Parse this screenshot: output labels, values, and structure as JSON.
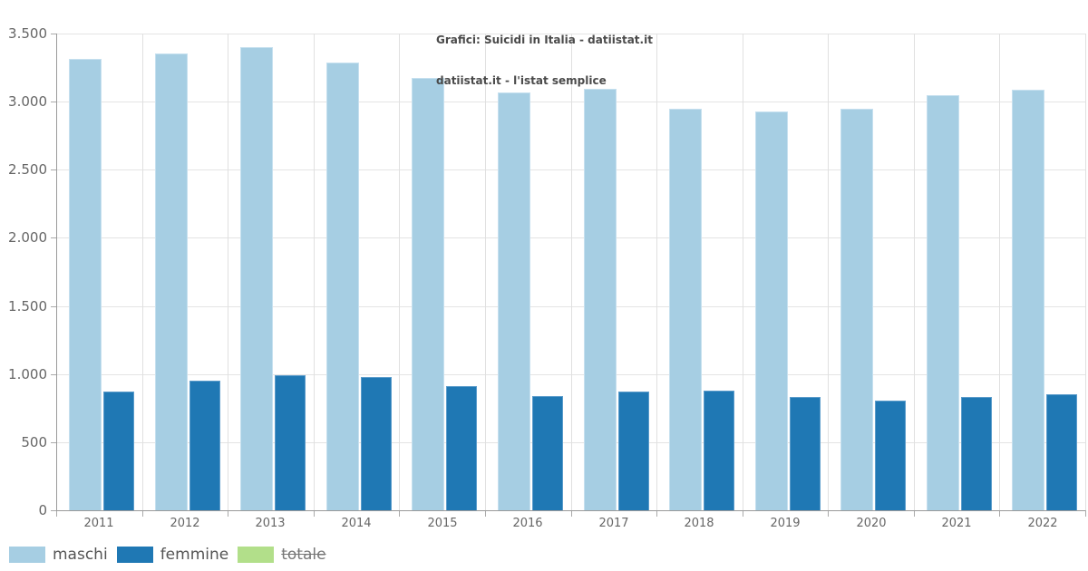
{
  "title": {
    "line1": "Grafici: Suicidi in Italia - datiistat.it",
    "line2": "datiistat.it - l'istat semplice"
  },
  "chart_data": {
    "type": "bar",
    "title": "Grafici: Suicidi in Italia - datiistat.it",
    "subtitle": "datiistat.it - l'istat semplice",
    "categories": [
      "2011",
      "2012",
      "2013",
      "2014",
      "2015",
      "2016",
      "2017",
      "2018",
      "2019",
      "2020",
      "2021",
      "2022"
    ],
    "series": [
      {
        "name": "maschi",
        "color": "#a6cee3",
        "edge_color": "#c6e0ef",
        "visible": true,
        "values": [
          3315,
          3355,
          3400,
          3290,
          3175,
          3070,
          3095,
          2950,
          2930,
          2950,
          3045,
          3090
        ]
      },
      {
        "name": "femmine",
        "color": "#1f78b4",
        "edge_color": "#5b9ccb",
        "visible": true,
        "values": [
          870,
          950,
          990,
          980,
          910,
          840,
          870,
          880,
          830,
          805,
          835,
          855
        ]
      },
      {
        "name": "totale",
        "color": "#b2df8a",
        "edge_color": "#c9e9ab",
        "visible": false,
        "values": []
      }
    ],
    "xlabel": "",
    "ylabel": "",
    "ylim": [
      0,
      3500
    ],
    "ytick_step": 500,
    "ytick_labels": [
      "0",
      "500",
      "1.000",
      "1.500",
      "2.000",
      "2.500",
      "3.000",
      "3.500"
    ],
    "grid": true,
    "legend_position": "bottom-left"
  },
  "colors": {
    "background": "#ffffff",
    "title_text": "#4a4a4a",
    "tick_text": "#666666",
    "legend_text": "#555555",
    "gridline": "#e4e4e4",
    "axis": "#9a9a9a"
  }
}
